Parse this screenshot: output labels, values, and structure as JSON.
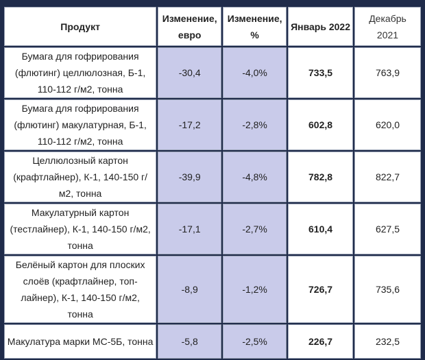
{
  "table": {
    "headers": {
      "product": "Продукт",
      "change_eur": "Изменение, евро",
      "change_pct": "Изменение, %",
      "jan_2022": "Январь 2022",
      "dec_2021": "Декабрь 2021"
    },
    "rows": [
      {
        "product": "Бумага для гофрирования (флютинг) целлюлозная, Б-1, 110-112 г/м2, тонна",
        "change_eur": "-30,4",
        "change_pct": "-4,0%",
        "jan_2022": "733,5",
        "dec_2021": "763,9"
      },
      {
        "product": "Бумага для гофрирования (флютинг) макулатурная, Б-1, 110-112 г/м2, тонна",
        "change_eur": "-17,2",
        "change_pct": "-2,8%",
        "jan_2022": "602,8",
        "dec_2021": "620,0"
      },
      {
        "product": "Целлюлозный картон (крафтлайнер), К-1, 140-150 г/м2, тонна",
        "change_eur": "-39,9",
        "change_pct": "-4,8%",
        "jan_2022": "782,8",
        "dec_2021": "822,7"
      },
      {
        "product": "Макулатурный картон (тестлайнер), К-1, 140-150 г/м2, тонна",
        "change_eur": "-17,1",
        "change_pct": "-2,7%",
        "jan_2022": "610,4",
        "dec_2021": "627,5"
      },
      {
        "product": "Белёный картон для плоских слоёв (крафтлайнер, топ-лайнер), К-1, 140-150 г/м2, тонна",
        "change_eur": "-8,9",
        "change_pct": "-1,2%",
        "jan_2022": "726,7",
        "dec_2021": "735,6"
      },
      {
        "product": "Макулатура марки МС-5Б, тонна",
        "change_eur": "-5,8",
        "change_pct": "-2,5%",
        "jan_2022": "226,7",
        "dec_2021": "232,5"
      }
    ]
  }
}
